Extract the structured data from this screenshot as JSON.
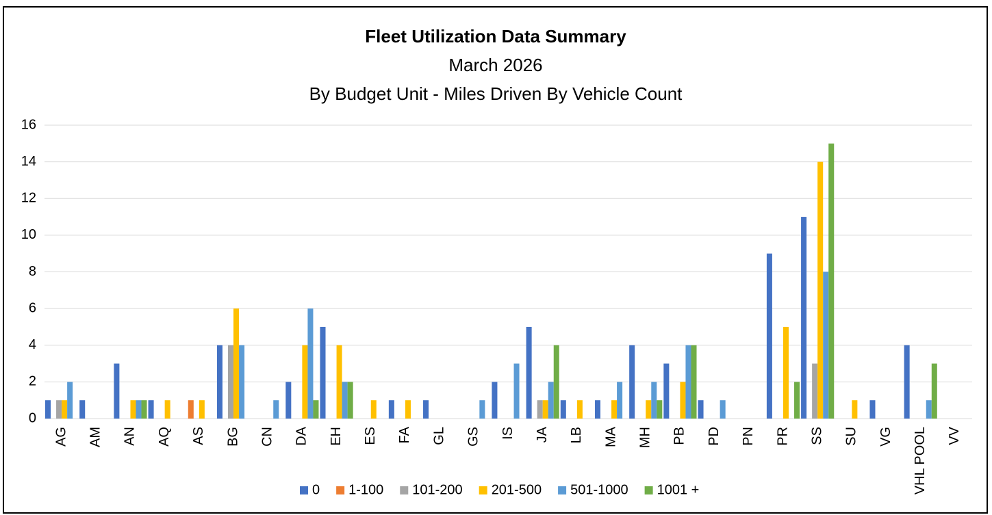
{
  "chart_data": {
    "type": "bar",
    "title": "Fleet Utilization Data Summary",
    "subtitle": [
      "March 2026",
      "By Budget Unit - Miles Driven By Vehicle Count"
    ],
    "categories": [
      "AG",
      "AM",
      "AN",
      "AQ",
      "AS",
      "BG",
      "CN",
      "DA",
      "EH",
      "ES",
      "FA",
      "GL",
      "GS",
      "IS",
      "JA",
      "LB",
      "MA",
      "MH",
      "PB",
      "PD",
      "PN",
      "PR",
      "SS",
      "SU",
      "VG",
      "VHL POOL",
      "VV"
    ],
    "series": [
      {
        "name": "0",
        "color": "#4472c4",
        "values": [
          1,
          1,
          3,
          1,
          0,
          4,
          0,
          2,
          5,
          0,
          1,
          1,
          0,
          2,
          5,
          1,
          1,
          4,
          3,
          1,
          0,
          9,
          11,
          0,
          1,
          4,
          0
        ]
      },
      {
        "name": "1-100",
        "color": "#ed7d31",
        "values": [
          0,
          0,
          0,
          0,
          1,
          0,
          0,
          0,
          0,
          0,
          0,
          0,
          0,
          0,
          0,
          0,
          0,
          0,
          0,
          0,
          0,
          0,
          0,
          0,
          0,
          0,
          0
        ]
      },
      {
        "name": "101-200",
        "color": "#a5a5a5",
        "values": [
          1,
          0,
          0,
          0,
          0,
          4,
          0,
          0,
          0,
          0,
          0,
          0,
          0,
          0,
          1,
          0,
          0,
          0,
          0,
          0,
          0,
          0,
          3,
          0,
          0,
          0,
          0
        ]
      },
      {
        "name": "201-500",
        "color": "#ffc000",
        "values": [
          1,
          0,
          1,
          1,
          1,
          6,
          0,
          4,
          4,
          1,
          1,
          0,
          0,
          0,
          1,
          1,
          1,
          1,
          2,
          0,
          0,
          5,
          14,
          1,
          0,
          0,
          0
        ]
      },
      {
        "name": "501-1000",
        "color": "#5b9bd5",
        "values": [
          2,
          0,
          1,
          0,
          0,
          4,
          1,
          6,
          2,
          0,
          0,
          0,
          1,
          3,
          2,
          0,
          2,
          2,
          4,
          1,
          0,
          0,
          8,
          0,
          0,
          1,
          0
        ]
      },
      {
        "name": "1001 +",
        "color": "#70ad47",
        "values": [
          0,
          0,
          1,
          0,
          0,
          0,
          0,
          1,
          2,
          0,
          0,
          0,
          0,
          0,
          4,
          0,
          0,
          1,
          4,
          0,
          0,
          2,
          15,
          0,
          0,
          3,
          0
        ]
      }
    ],
    "ylim": [
      0,
      16
    ],
    "yticks": [
      0,
      2,
      4,
      6,
      8,
      10,
      12,
      14,
      16
    ],
    "grid": true,
    "legend": "bottom"
  }
}
